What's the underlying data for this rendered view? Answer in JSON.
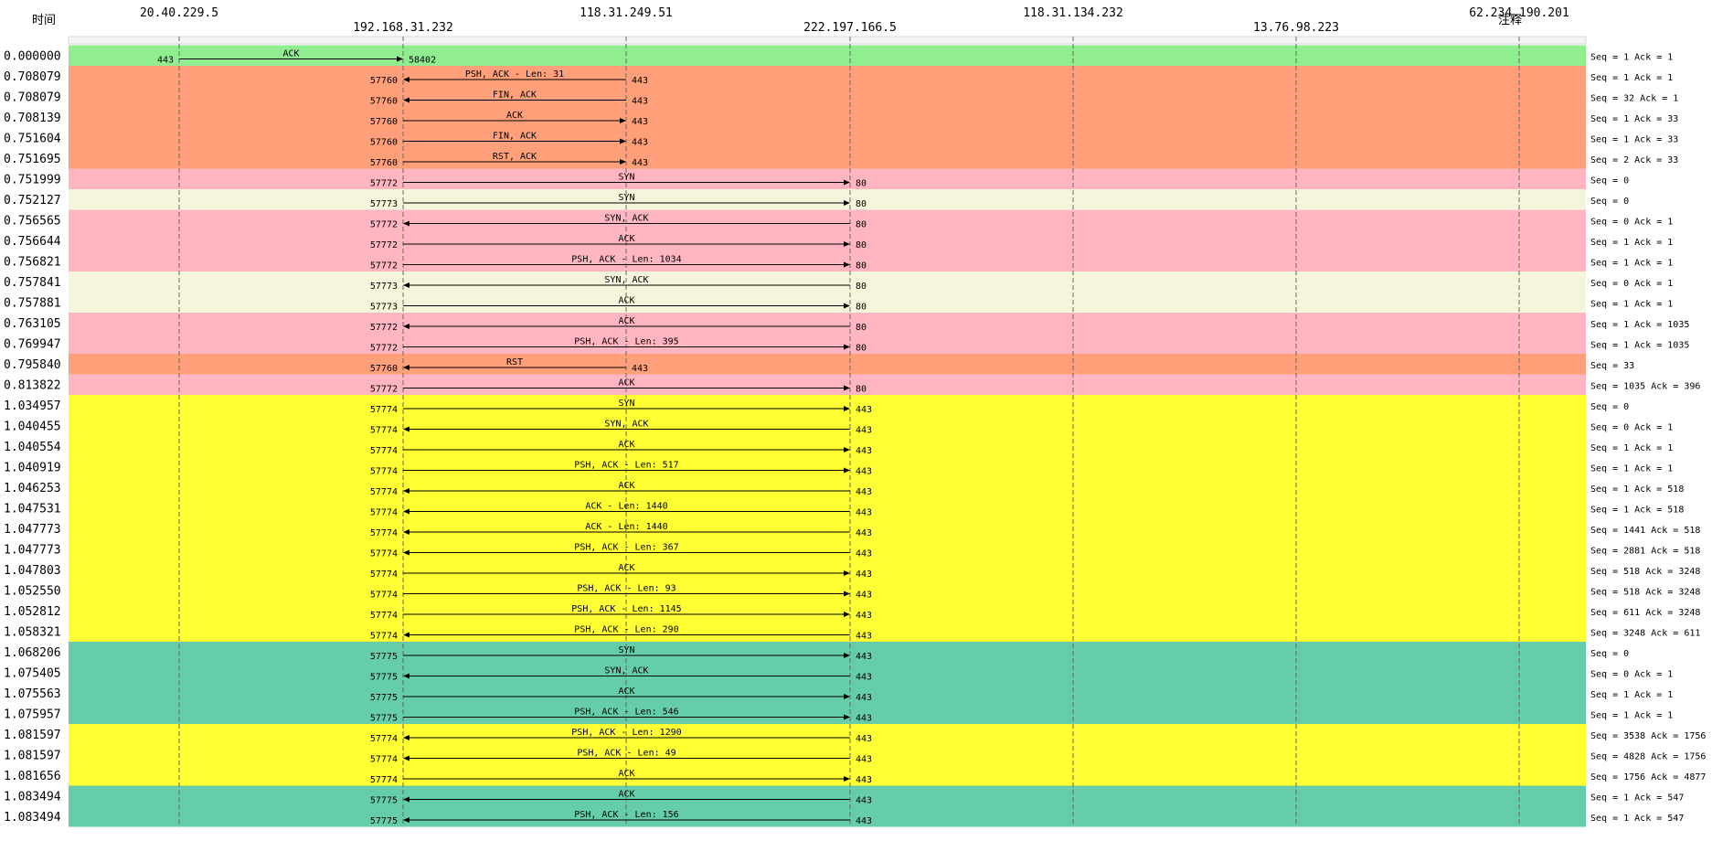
{
  "header": {
    "time_label": "时间",
    "comment_label": "注释"
  },
  "hosts": [
    "20.40.229.5",
    "192.168.31.232",
    "118.31.249.51",
    "222.197.166.5",
    "118.31.134.232",
    "13.76.98.223",
    "62.234.190.201"
  ],
  "colors": {
    "light_green": "#90EE90",
    "light_salmon": "#FFA07A",
    "light_pink": "#FFB6C1",
    "beige": "#F5F5DC",
    "yellow": "#FFFF33",
    "medium_aquamarine": "#66CDAA",
    "lifeline": "#666666",
    "arrow": "#000000"
  },
  "rows": [
    {
      "time": "0.000000",
      "from": 0,
      "to": 1,
      "label": "ACK",
      "src_port": "443",
      "dst_port": "58402",
      "comment": "Seq = 1 Ack = 1",
      "color": "light_green"
    },
    {
      "time": "0.708079",
      "from": 2,
      "to": 1,
      "label": "PSH, ACK - Len: 31",
      "src_port": "443",
      "dst_port": "57760",
      "comment": "Seq = 1 Ack = 1",
      "color": "light_salmon"
    },
    {
      "time": "0.708079",
      "from": 2,
      "to": 1,
      "label": "FIN, ACK",
      "src_port": "443",
      "dst_port": "57760",
      "comment": "Seq = 32 Ack = 1",
      "color": "light_salmon"
    },
    {
      "time": "0.708139",
      "from": 1,
      "to": 2,
      "label": "ACK",
      "src_port": "57760",
      "dst_port": "443",
      "comment": "Seq = 1 Ack = 33",
      "color": "light_salmon"
    },
    {
      "time": "0.751604",
      "from": 1,
      "to": 2,
      "label": "FIN, ACK",
      "src_port": "57760",
      "dst_port": "443",
      "comment": "Seq = 1 Ack = 33",
      "color": "light_salmon"
    },
    {
      "time": "0.751695",
      "from": 1,
      "to": 2,
      "label": "RST, ACK",
      "src_port": "57760",
      "dst_port": "443",
      "comment": "Seq = 2 Ack = 33",
      "color": "light_salmon"
    },
    {
      "time": "0.751999",
      "from": 1,
      "to": 3,
      "label": "SYN",
      "src_port": "57772",
      "dst_port": "80",
      "comment": "Seq = 0",
      "color": "light_pink"
    },
    {
      "time": "0.752127",
      "from": 1,
      "to": 3,
      "label": "SYN",
      "src_port": "57773",
      "dst_port": "80",
      "comment": "Seq = 0",
      "color": "beige"
    },
    {
      "time": "0.756565",
      "from": 3,
      "to": 1,
      "label": "SYN, ACK",
      "src_port": "80",
      "dst_port": "57772",
      "comment": "Seq = 0 Ack = 1",
      "color": "light_pink"
    },
    {
      "time": "0.756644",
      "from": 1,
      "to": 3,
      "label": "ACK",
      "src_port": "57772",
      "dst_port": "80",
      "comment": "Seq = 1 Ack = 1",
      "color": "light_pink"
    },
    {
      "time": "0.756821",
      "from": 1,
      "to": 3,
      "label": "PSH, ACK - Len: 1034",
      "src_port": "57772",
      "dst_port": "80",
      "comment": "Seq = 1 Ack = 1",
      "color": "light_pink"
    },
    {
      "time": "0.757841",
      "from": 3,
      "to": 1,
      "label": "SYN, ACK",
      "src_port": "80",
      "dst_port": "57773",
      "comment": "Seq = 0 Ack = 1",
      "color": "beige"
    },
    {
      "time": "0.757881",
      "from": 1,
      "to": 3,
      "label": "ACK",
      "src_port": "57773",
      "dst_port": "80",
      "comment": "Seq = 1 Ack = 1",
      "color": "beige"
    },
    {
      "time": "0.763105",
      "from": 3,
      "to": 1,
      "label": "ACK",
      "src_port": "80",
      "dst_port": "57772",
      "comment": "Seq = 1 Ack = 1035",
      "color": "light_pink"
    },
    {
      "time": "0.769947",
      "from": 1,
      "to": 3,
      "label": "PSH, ACK - Len: 395",
      "src_port": "57772",
      "dst_port": "80",
      "comment": "Seq = 1 Ack = 1035",
      "color": "light_pink"
    },
    {
      "time": "0.795840",
      "from": 2,
      "to": 1,
      "label": "RST",
      "src_port": "443",
      "dst_port": "57760",
      "comment": "Seq = 33",
      "color": "light_salmon"
    },
    {
      "time": "0.813822",
      "from": 1,
      "to": 3,
      "label": "ACK",
      "src_port": "57772",
      "dst_port": "80",
      "comment": "Seq = 1035 Ack = 396",
      "color": "light_pink"
    },
    {
      "time": "1.034957",
      "from": 1,
      "to": 3,
      "label": "SYN",
      "src_port": "57774",
      "dst_port": "443",
      "comment": "Seq = 0",
      "color": "yellow"
    },
    {
      "time": "1.040455",
      "from": 3,
      "to": 1,
      "label": "SYN, ACK",
      "src_port": "443",
      "dst_port": "57774",
      "comment": "Seq = 0 Ack = 1",
      "color": "yellow"
    },
    {
      "time": "1.040554",
      "from": 1,
      "to": 3,
      "label": "ACK",
      "src_port": "57774",
      "dst_port": "443",
      "comment": "Seq = 1 Ack = 1",
      "color": "yellow"
    },
    {
      "time": "1.040919",
      "from": 1,
      "to": 3,
      "label": "PSH, ACK - Len: 517",
      "src_port": "57774",
      "dst_port": "443",
      "comment": "Seq = 1 Ack = 1",
      "color": "yellow"
    },
    {
      "time": "1.046253",
      "from": 3,
      "to": 1,
      "label": "ACK",
      "src_port": "443",
      "dst_port": "57774",
      "comment": "Seq = 1 Ack = 518",
      "color": "yellow"
    },
    {
      "time": "1.047531",
      "from": 3,
      "to": 1,
      "label": "ACK - Len: 1440",
      "src_port": "443",
      "dst_port": "57774",
      "comment": "Seq = 1 Ack = 518",
      "color": "yellow"
    },
    {
      "time": "1.047773",
      "from": 3,
      "to": 1,
      "label": "ACK - Len: 1440",
      "src_port": "443",
      "dst_port": "57774",
      "comment": "Seq = 1441 Ack = 518",
      "color": "yellow"
    },
    {
      "time": "1.047773",
      "from": 3,
      "to": 1,
      "label": "PSH, ACK - Len: 367",
      "src_port": "443",
      "dst_port": "57774",
      "comment": "Seq = 2881 Ack = 518",
      "color": "yellow"
    },
    {
      "time": "1.047803",
      "from": 1,
      "to": 3,
      "label": "ACK",
      "src_port": "57774",
      "dst_port": "443",
      "comment": "Seq = 518 Ack = 3248",
      "color": "yellow"
    },
    {
      "time": "1.052550",
      "from": 1,
      "to": 3,
      "label": "PSH, ACK - Len: 93",
      "src_port": "57774",
      "dst_port": "443",
      "comment": "Seq = 518 Ack = 3248",
      "color": "yellow"
    },
    {
      "time": "1.052812",
      "from": 1,
      "to": 3,
      "label": "PSH, ACK - Len: 1145",
      "src_port": "57774",
      "dst_port": "443",
      "comment": "Seq = 611 Ack = 3248",
      "color": "yellow"
    },
    {
      "time": "1.058321",
      "from": 3,
      "to": 1,
      "label": "PSH, ACK - Len: 290",
      "src_port": "443",
      "dst_port": "57774",
      "comment": "Seq = 3248 Ack = 611",
      "color": "yellow"
    },
    {
      "time": "1.068206",
      "from": 1,
      "to": 3,
      "label": "SYN",
      "src_port": "57775",
      "dst_port": "443",
      "comment": "Seq = 0",
      "color": "medium_aquamarine"
    },
    {
      "time": "1.075405",
      "from": 3,
      "to": 1,
      "label": "SYN, ACK",
      "src_port": "443",
      "dst_port": "57775",
      "comment": "Seq = 0 Ack = 1",
      "color": "medium_aquamarine"
    },
    {
      "time": "1.075563",
      "from": 1,
      "to": 3,
      "label": "ACK",
      "src_port": "57775",
      "dst_port": "443",
      "comment": "Seq = 1 Ack = 1",
      "color": "medium_aquamarine"
    },
    {
      "time": "1.075957",
      "from": 1,
      "to": 3,
      "label": "PSH, ACK - Len: 546",
      "src_port": "57775",
      "dst_port": "443",
      "comment": "Seq = 1 Ack = 1",
      "color": "medium_aquamarine"
    },
    {
      "time": "1.081597",
      "from": 3,
      "to": 1,
      "label": "PSH, ACK - Len: 1290",
      "src_port": "443",
      "dst_port": "57774",
      "comment": "Seq = 3538 Ack = 1756",
      "color": "yellow"
    },
    {
      "time": "1.081597",
      "from": 3,
      "to": 1,
      "label": "PSH, ACK - Len: 49",
      "src_port": "443",
      "dst_port": "57774",
      "comment": "Seq = 4828 Ack = 1756",
      "color": "yellow"
    },
    {
      "time": "1.081656",
      "from": 1,
      "to": 3,
      "label": "ACK",
      "src_port": "57774",
      "dst_port": "443",
      "comment": "Seq = 1756 Ack = 4877",
      "color": "yellow"
    },
    {
      "time": "1.083494",
      "from": 3,
      "to": 1,
      "label": "ACK",
      "src_port": "443",
      "dst_port": "57775",
      "comment": "Seq = 1 Ack = 547",
      "color": "medium_aquamarine"
    },
    {
      "time": "1.083494",
      "from": 3,
      "to": 1,
      "label": "PSH, ACK - Len: 156",
      "src_port": "443",
      "dst_port": "57775",
      "comment": "Seq = 1 Ack = 547",
      "color": "medium_aquamarine"
    }
  ]
}
